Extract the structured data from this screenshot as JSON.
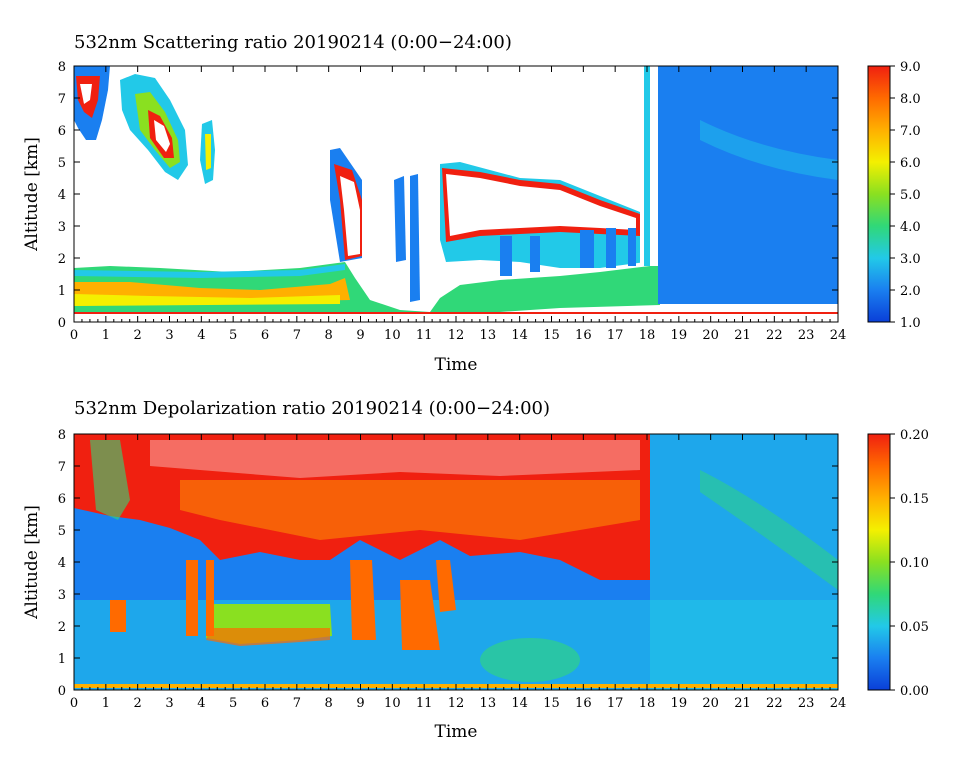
{
  "colorscale": [
    "#0a3fd8",
    "#1a7ff0",
    "#22c9e8",
    "#30d878",
    "#8ae020",
    "#f4f000",
    "#ffb000",
    "#ff6a00",
    "#f02010"
  ],
  "chart_data": [
    {
      "type": "heatmap",
      "title": "532nm Scattering ratio  20190214 (0:00−24:00)",
      "xlabel": "Time",
      "ylabel": "Altitude [km]",
      "xlim": [
        0,
        24
      ],
      "ylim": [
        0,
        8
      ],
      "x_ticks": [
        "0",
        "1",
        "2",
        "3",
        "4",
        "5",
        "6",
        "7",
        "8",
        "9",
        "10",
        "11",
        "12",
        "13",
        "14",
        "15",
        "16",
        "17",
        "18",
        "19",
        "20",
        "21",
        "22",
        "23",
        "24"
      ],
      "y_ticks": [
        "0",
        "1",
        "2",
        "3",
        "4",
        "5",
        "6",
        "7",
        "8"
      ],
      "colorbar": {
        "range": [
          1.0,
          9.0
        ],
        "ticks": [
          "1.0",
          "2.0",
          "3.0",
          "4.0",
          "5.0",
          "6.0",
          "7.0",
          "8.0",
          "9.0"
        ]
      },
      "features": [
        {
          "label": "boundary layer aerosol (high ratio)",
          "x": [
            0,
            8.5
          ],
          "y": [
            0.3,
            1.7
          ],
          "value": 5.0
        },
        {
          "label": "cirrus cloud",
          "x": [
            0,
            1.0
          ],
          "y": [
            5.5,
            8.0
          ],
          "value": 9.0
        },
        {
          "label": "cirrus cloud",
          "x": [
            1.5,
            3.6
          ],
          "y": [
            4.3,
            7.5
          ],
          "value": 9.0
        },
        {
          "label": "cirrus cloud",
          "x": [
            4.0,
            4.5
          ],
          "y": [
            4.3,
            6.0
          ],
          "value": 9.0
        },
        {
          "label": "cloud",
          "x": [
            8.0,
            11.0
          ],
          "y": [
            2.0,
            5.5
          ],
          "value": 9.0
        },
        {
          "label": "cloud",
          "x": [
            11.8,
            18.0
          ],
          "y": [
            1.7,
            4.8
          ],
          "value": 9.0
        },
        {
          "label": "clear / low ratio",
          "x": [
            18.3,
            24
          ],
          "y": [
            0.5,
            8.0
          ],
          "value": 1.8
        }
      ]
    },
    {
      "type": "heatmap",
      "title": "532nm Depolarization ratio  20190214 (0:00−24:00)",
      "xlabel": "Time",
      "ylabel": "Altitude [km]",
      "xlim": [
        0,
        24
      ],
      "ylim": [
        0,
        8
      ],
      "x_ticks": [
        "0",
        "1",
        "2",
        "3",
        "4",
        "5",
        "6",
        "7",
        "8",
        "9",
        "10",
        "11",
        "12",
        "13",
        "14",
        "15",
        "16",
        "17",
        "18",
        "19",
        "20",
        "21",
        "22",
        "23",
        "24"
      ],
      "y_ticks": [
        "0",
        "1",
        "2",
        "3",
        "4",
        "5",
        "6",
        "7",
        "8"
      ],
      "colorbar": {
        "range": [
          0.0,
          0.2
        ],
        "ticks": [
          "0.00",
          "0.05",
          "0.10",
          "0.15",
          "0.20"
        ]
      },
      "features": [
        {
          "label": "high depolarization (noisy, upper)",
          "x": [
            0,
            18.0
          ],
          "y": [
            4.0,
            8.0
          ],
          "value": 0.2
        },
        {
          "label": "mid-level depolarization layer",
          "x": [
            4.5,
            7.8
          ],
          "y": [
            1.6,
            2.5
          ],
          "value": 0.1
        },
        {
          "label": "low background",
          "x": [
            0,
            24
          ],
          "y": [
            0.0,
            1.7
          ],
          "value": 0.04
        },
        {
          "label": "clear air region",
          "x": [
            18.3,
            24
          ],
          "y": [
            0.0,
            8.0
          ],
          "value": 0.05
        }
      ]
    }
  ]
}
